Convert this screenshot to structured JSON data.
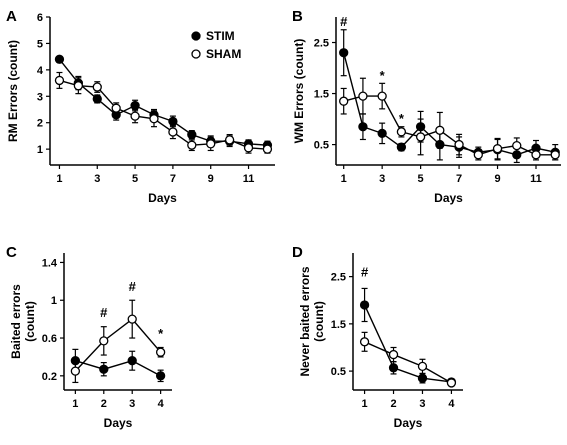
{
  "chart_data": [
    {
      "id": "A",
      "panel_letter": "A",
      "type": "line",
      "ylabel": "RM Errors (count)",
      "xlabel": "Days",
      "xlim": [
        0.5,
        12.4
      ],
      "ylim": [
        0.4,
        6
      ],
      "xticks": [
        1,
        3,
        5,
        7,
        9,
        11
      ],
      "yticks": [
        1,
        2,
        3,
        4,
        5,
        6
      ],
      "legend": {
        "placement": "top-right",
        "entries": [
          "STIM",
          "SHAM"
        ]
      },
      "series": [
        {
          "name": "STIM",
          "marker": "filled",
          "x": [
            1,
            2,
            3,
            4,
            5,
            6,
            7,
            8,
            9,
            10,
            11,
            12
          ],
          "y": [
            4.4,
            3.5,
            2.9,
            2.3,
            2.65,
            2.3,
            2.05,
            1.55,
            1.3,
            1.3,
            1.2,
            1.15
          ],
          "err": [
            0.1,
            0.25,
            0.15,
            0.2,
            0.2,
            0.2,
            0.2,
            0.15,
            0.2,
            0.2,
            0.15,
            0.15
          ]
        },
        {
          "name": "SHAM",
          "marker": "open",
          "x": [
            1,
            2,
            3,
            4,
            5,
            6,
            7,
            8,
            9,
            10,
            11,
            12
          ],
          "y": [
            3.6,
            3.4,
            3.35,
            2.55,
            2.25,
            2.15,
            1.65,
            1.15,
            1.2,
            1.35,
            1.05,
            1.0
          ],
          "err": [
            0.3,
            0.3,
            0.2,
            0.2,
            0.25,
            0.3,
            0.25,
            0.2,
            0.25,
            0.2,
            0.2,
            0.15
          ]
        }
      ],
      "annotations": []
    },
    {
      "id": "B",
      "panel_letter": "B",
      "type": "line",
      "ylabel": "WM Errors (count)",
      "xlabel": "Days",
      "xlim": [
        0.6,
        12.3
      ],
      "ylim": [
        0.1,
        3.0
      ],
      "xticks": [
        1,
        3,
        5,
        7,
        9,
        11
      ],
      "yticks": [
        0.5,
        1.5,
        2.5
      ],
      "series": [
        {
          "name": "STIM",
          "marker": "filled",
          "x": [
            1,
            2,
            3,
            4,
            5,
            6,
            7,
            8,
            9,
            10,
            11,
            12
          ],
          "y": [
            2.3,
            0.85,
            0.72,
            0.45,
            0.85,
            0.5,
            0.45,
            0.35,
            0.4,
            0.3,
            0.43,
            0.35
          ],
          "err": [
            0.45,
            0.25,
            0.2,
            0.07,
            0.3,
            0.3,
            0.2,
            0.1,
            0.2,
            0.15,
            0.15,
            0.15
          ]
        },
        {
          "name": "SHAM",
          "marker": "open",
          "x": [
            1,
            2,
            3,
            4,
            5,
            6,
            7,
            8,
            9,
            10,
            11,
            12
          ],
          "y": [
            1.35,
            1.45,
            1.45,
            0.75,
            0.65,
            0.78,
            0.5,
            0.3,
            0.42,
            0.48,
            0.3,
            0.3
          ],
          "err": [
            0.25,
            0.35,
            0.25,
            0.1,
            0.35,
            0.35,
            0.2,
            0.1,
            0.2,
            0.15,
            0.1,
            0.1
          ]
        }
      ],
      "annotations": [
        {
          "x": 1,
          "y": 2.82,
          "text": "#"
        },
        {
          "x": 3,
          "y": 1.77,
          "text": "*"
        },
        {
          "x": 4,
          "y": 0.92,
          "text": "*"
        }
      ]
    },
    {
      "id": "C",
      "panel_letter": "C",
      "type": "line",
      "ylabel": "Baited errors\n(count)",
      "xlabel": "Days",
      "xlim": [
        0.6,
        4.4
      ],
      "ylim": [
        0.05,
        1.5
      ],
      "xticks": [
        1,
        2,
        3,
        4
      ],
      "yticks": [
        0.2,
        0.6,
        1.0,
        1.4
      ],
      "series": [
        {
          "name": "STIM",
          "marker": "filled",
          "x": [
            1,
            2,
            3,
            4
          ],
          "y": [
            0.36,
            0.27,
            0.36,
            0.2
          ],
          "err": [
            0.12,
            0.07,
            0.1,
            0.06
          ]
        },
        {
          "name": "SHAM",
          "marker": "open",
          "x": [
            1,
            2,
            3,
            4
          ],
          "y": [
            0.25,
            0.57,
            0.8,
            0.45
          ],
          "err": [
            0.12,
            0.15,
            0.2,
            0.05
          ]
        }
      ],
      "annotations": [
        {
          "x": 2,
          "y": 0.82,
          "text": "#"
        },
        {
          "x": 3,
          "y": 1.1,
          "text": "#"
        },
        {
          "x": 4,
          "y": 0.6,
          "text": "*"
        }
      ]
    },
    {
      "id": "D",
      "panel_letter": "D",
      "type": "line",
      "ylabel": "Never baited errors\n(count)",
      "xlabel": "Days",
      "xlim": [
        0.6,
        4.4
      ],
      "ylim": [
        0.1,
        3.0
      ],
      "xticks": [
        1,
        2,
        3,
        4
      ],
      "yticks": [
        0.5,
        1.5,
        2.5
      ],
      "series": [
        {
          "name": "STIM",
          "marker": "filled",
          "x": [
            1,
            2,
            3,
            4
          ],
          "y": [
            1.9,
            0.57,
            0.35,
            0.27
          ],
          "err": [
            0.35,
            0.13,
            0.1,
            0.05
          ]
        },
        {
          "name": "SHAM",
          "marker": "open",
          "x": [
            1,
            2,
            3,
            4
          ],
          "y": [
            1.12,
            0.85,
            0.6,
            0.25
          ],
          "err": [
            0.2,
            0.15,
            0.15,
            0.05
          ]
        }
      ],
      "annotations": [
        {
          "x": 1,
          "y": 2.5,
          "text": "#"
        }
      ]
    }
  ]
}
